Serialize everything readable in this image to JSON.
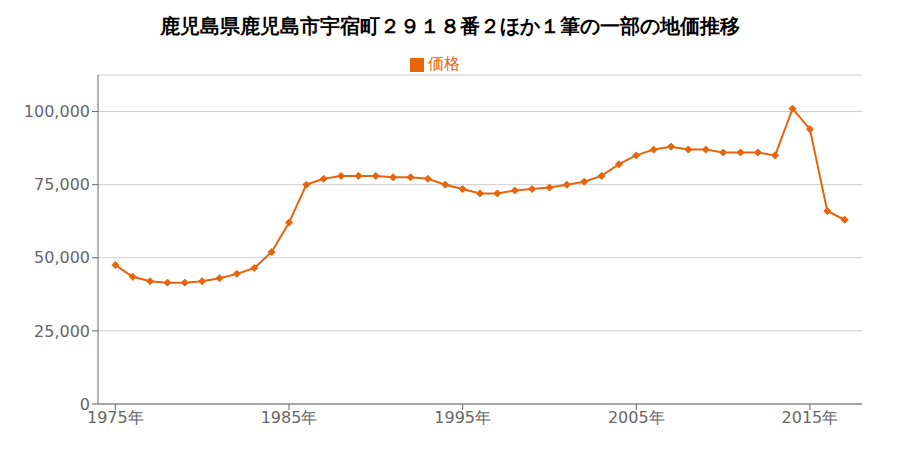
{
  "chart_data": {
    "type": "line",
    "title": "鹿児島県鹿児島市宇宿町２９１８番２ほか１筆の一部の地価推移",
    "x": [
      1975,
      1976,
      1977,
      1978,
      1979,
      1980,
      1981,
      1982,
      1983,
      1984,
      1985,
      1986,
      1987,
      1988,
      1989,
      1990,
      1991,
      1992,
      1993,
      1994,
      1995,
      1996,
      1997,
      1998,
      1999,
      2000,
      2001,
      2002,
      2003,
      2004,
      2005,
      2006,
      2007,
      2008,
      2009,
      2010,
      2011,
      2012,
      2013,
      2014,
      2015,
      2016,
      2017
    ],
    "series": [
      {
        "name": "価格",
        "color": "#E8640A",
        "marker": "diamond",
        "values": [
          47500,
          43500,
          42000,
          41500,
          41500,
          42000,
          43000,
          44500,
          46500,
          52000,
          62000,
          75000,
          77000,
          78000,
          78000,
          78000,
          77500,
          77500,
          77000,
          75000,
          73500,
          72000,
          72000,
          73000,
          73500,
          74000,
          75000,
          76000,
          78000,
          82000,
          85000,
          87000,
          88000,
          87000,
          87000,
          86000,
          86000,
          86000,
          85000,
          101000,
          94000,
          66000,
          63000
        ]
      }
    ],
    "xlim": [
      1974,
      2018
    ],
    "xticks": [
      {
        "value": 1975,
        "label": "1975年"
      },
      {
        "value": 1985,
        "label": "1985年"
      },
      {
        "value": 1995,
        "label": "1995年"
      },
      {
        "value": 2005,
        "label": "2005年"
      },
      {
        "value": 2015,
        "label": "2015年"
      }
    ],
    "ylim": [
      0,
      112500
    ],
    "yticks": [
      0,
      {
        "value": 25000,
        "label": "25,000"
      },
      {
        "value": 50000,
        "label": "50,000"
      },
      {
        "value": 75000,
        "label": "75,000"
      },
      {
        "value": 100000,
        "label": "100,000"
      }
    ],
    "grid": true,
    "legend": "top"
  }
}
